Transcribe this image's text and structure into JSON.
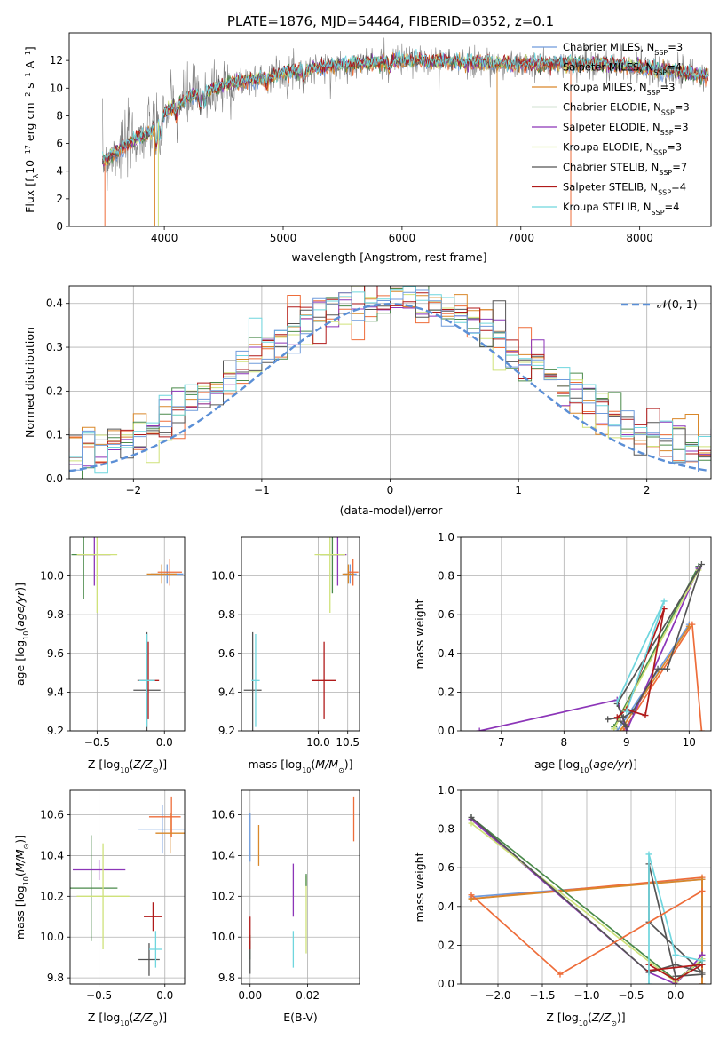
{
  "figure_title": "PLATE=1876, MJD=54464, FIBERID=0352, z=0.1",
  "colors": {
    "chabrier_miles": "#6f9bdc",
    "salpeter_miles": "#ee6d3a",
    "kroupa_miles": "#d9882a",
    "chabrier_elodie": "#4a8a4a",
    "salpeter_elodie": "#8c35b8",
    "kroupa_elodie": "#cfe27a",
    "chabrier_stelib": "#555555",
    "salpeter_stelib": "#b01a1a",
    "kroupa_stelib": "#6fd6de",
    "gaussian": "#5b8fd6",
    "data": "#808080",
    "grid": "#b0b0b0"
  },
  "chart_data": [
    {
      "id": "spectrum",
      "type": "line",
      "title": "PLATE=1876, MJD=54464, FIBERID=0352, z=0.1",
      "xlabel": "wavelength [Angstrom, rest frame]",
      "ylabel": "Flux [f",
      "xlim": [
        3200,
        8600
      ],
      "ylim": [
        0,
        14
      ],
      "xticks": [
        "4000",
        "5000",
        "6000",
        "7000",
        "8000"
      ],
      "yticks": [
        "0",
        "2",
        "4",
        "6",
        "8",
        "10",
        "12"
      ],
      "grid": false,
      "legend_position": "top-right",
      "legend": [
        {
          "label": "Chabrier MILES, N",
          "sub": "SSP",
          "tail": "=3"
        },
        {
          "label": "Salpeter MILES, N",
          "sub": "SSP",
          "tail": "=4"
        },
        {
          "label": "Kroupa MILES, N",
          "sub": "SSP",
          "tail": "=3"
        },
        {
          "label": "Chabrier ELODIE, N",
          "sub": "SSP",
          "tail": "=3"
        },
        {
          "label": "Salpeter ELODIE, N",
          "sub": "SSP",
          "tail": "=3"
        },
        {
          "label": "Kroupa ELODIE, N",
          "sub": "SSP",
          "tail": "=3"
        },
        {
          "label": "Chabrier STELIB, N",
          "sub": "SSP",
          "tail": "=7"
        },
        {
          "label": "Salpeter STELIB, N",
          "sub": "SSP",
          "tail": "=4"
        },
        {
          "label": "Kroupa STELIB, N",
          "sub": "SSP",
          "tail": "=4"
        }
      ],
      "continuum": {
        "x": [
          3500,
          3700,
          3900,
          4000,
          4200,
          4500,
          5000,
          5500,
          6000,
          6500,
          7000,
          7400,
          7900,
          8300,
          8600
        ],
        "y": [
          4.8,
          6.0,
          7.0,
          8.2,
          9.3,
          10.2,
          11.1,
          11.7,
          12.0,
          11.9,
          11.7,
          11.8,
          11.6,
          11.2,
          10.8
        ]
      },
      "spectrum_range": [
        3480,
        8580
      ]
    },
    {
      "id": "residuals",
      "type": "bar",
      "xlabel": "(data-model)/error",
      "ylabel": "Normed distribution",
      "xlim": [
        -2.5,
        2.5
      ],
      "ylim": [
        0,
        0.44
      ],
      "xticks": [
        "−2",
        "−1",
        "0",
        "1",
        "2"
      ],
      "yticks": [
        "0.0",
        "0.1",
        "0.2",
        "0.3",
        "0.4"
      ],
      "grid": true,
      "legend_position": "top-right",
      "legend_label": "𝒩(0, 1)",
      "bin_width": 0.1
    },
    {
      "id": "age_vs_z",
      "type": "scatter",
      "xlabel": "Z [log",
      "ylabel": "age  [log",
      "xlim": [
        -0.7,
        0.15
      ],
      "ylim": [
        9.2,
        10.2
      ],
      "xticks": [
        "−0.5",
        "0.0"
      ],
      "yticks": [
        "9.2",
        "9.4",
        "9.6",
        "9.8",
        "10.0"
      ],
      "grid": true,
      "points": [
        {
          "model": "chabrier_miles",
          "x": 0.02,
          "y": 10.01,
          "xerr": 0.12,
          "yerr": 0.05
        },
        {
          "model": "salpeter_miles",
          "x": 0.04,
          "y": 10.02,
          "xerr": 0.09,
          "yerr": 0.07
        },
        {
          "model": "kroupa_miles",
          "x": -0.02,
          "y": 10.01,
          "xerr": 0.11,
          "yerr": 0.05
        },
        {
          "model": "chabrier_elodie",
          "x": -0.6,
          "y": 10.11,
          "xerr": 0.09,
          "yerr": 0.23
        },
        {
          "model": "salpeter_elodie",
          "x": -0.52,
          "y": 10.11,
          "xerr": 0.12,
          "yerr": 0.16
        },
        {
          "model": "kroupa_elodie",
          "x": -0.5,
          "y": 10.11,
          "xerr": 0.15,
          "yerr": 0.3
        },
        {
          "model": "chabrier_stelib",
          "x": -0.13,
          "y": 9.41,
          "xerr": 0.1,
          "yerr": 0.3
        },
        {
          "model": "salpeter_stelib",
          "x": -0.12,
          "y": 9.46,
          "xerr": 0.08,
          "yerr": 0.2
        },
        {
          "model": "kroupa_stelib",
          "x": -0.13,
          "y": 9.46,
          "xerr": 0.06,
          "yerr": 0.24
        }
      ]
    },
    {
      "id": "age_vs_mass",
      "type": "scatter",
      "xlabel": "mass [log",
      "ylabel": "",
      "xlim": [
        8.7,
        10.7
      ],
      "ylim": [
        9.2,
        10.2
      ],
      "xticks": [
        "10.0",
        "10.5"
      ],
      "yticks": [
        "9.2",
        "9.4",
        "9.6",
        "9.8",
        "10.0"
      ],
      "grid": true,
      "points": [
        {
          "model": "chabrier_miles",
          "x": 10.54,
          "y": 10.01,
          "xerr": 0.11,
          "yerr": 0.05
        },
        {
          "model": "salpeter_miles",
          "x": 10.59,
          "y": 10.02,
          "xerr": 0.09,
          "yerr": 0.07
        },
        {
          "model": "kroupa_miles",
          "x": 10.51,
          "y": 10.01,
          "xerr": 0.1,
          "yerr": 0.05
        },
        {
          "model": "chabrier_elodie",
          "x": 10.24,
          "y": 10.11,
          "xerr": 0.2,
          "yerr": 0.2
        },
        {
          "model": "salpeter_elodie",
          "x": 10.33,
          "y": 10.11,
          "xerr": 0.15,
          "yerr": 0.16
        },
        {
          "model": "kroupa_elodie",
          "x": 10.2,
          "y": 10.11,
          "xerr": 0.26,
          "yerr": 0.3
        },
        {
          "model": "chabrier_stelib",
          "x": 8.89,
          "y": 9.41,
          "xerr": 0.15,
          "yerr": 0.3
        },
        {
          "model": "salpeter_stelib",
          "x": 10.1,
          "y": 9.46,
          "xerr": 0.2,
          "yerr": 0.2
        },
        {
          "model": "kroupa_stelib",
          "x": 8.94,
          "y": 9.46,
          "xerr": 0.07,
          "yerr": 0.24
        }
      ]
    },
    {
      "id": "weight_vs_age",
      "type": "line",
      "xlabel": "age  [log",
      "ylabel": "mass weight",
      "xlim": [
        6.35,
        10.35
      ],
      "ylim": [
        0,
        1
      ],
      "xticks": [
        "7",
        "8",
        "9",
        "10"
      ],
      "yticks": [
        "0.0",
        "0.2",
        "0.4",
        "0.6",
        "0.8",
        "1.0"
      ],
      "grid": true,
      "series": [
        {
          "model": "chabrier_miles",
          "x": [
            8.85,
            10.0
          ],
          "y": [
            0.0,
            0.55
          ]
        },
        {
          "model": "salpeter_miles",
          "x": [
            10.2,
            10.05,
            8.95
          ],
          "y": [
            0.0,
            0.55,
            0.0
          ]
        },
        {
          "model": "kroupa_miles",
          "x": [
            8.9,
            10.0
          ],
          "y": [
            0.0,
            0.54
          ]
        },
        {
          "model": "chabrier_elodie",
          "x": [
            8.8,
            10.15
          ],
          "y": [
            0.02,
            0.85
          ]
        },
        {
          "model": "salpeter_elodie",
          "x": [
            6.65,
            8.85,
            9.0,
            10.15
          ],
          "y": [
            0.0,
            0.16,
            0.0,
            0.84
          ]
        },
        {
          "model": "kroupa_elodie",
          "x": [
            8.8,
            10.15
          ],
          "y": [
            0.01,
            0.83
          ]
        },
        {
          "model": "chabrier_stelib",
          "x": [
            8.7,
            8.95,
            9.1,
            9.5,
            9.65,
            10.2,
            8.85,
            9.0,
            8.9
          ],
          "y": [
            0.06,
            0.07,
            0.1,
            0.32,
            0.32,
            0.86,
            0.14,
            0.02,
            0.05
          ]
        },
        {
          "model": "salpeter_stelib",
          "x": [
            8.85,
            9.0,
            9.3,
            9.6,
            9.0
          ],
          "y": [
            0.07,
            0.11,
            0.08,
            0.63,
            0.11
          ]
        },
        {
          "model": "kroupa_stelib",
          "x": [
            8.85,
            9.6,
            9.0
          ],
          "y": [
            0.15,
            0.67,
            0.1
          ]
        }
      ]
    },
    {
      "id": "mass_vs_z",
      "type": "scatter",
      "xlabel": "Z [log",
      "ylabel": "mass [log",
      "xlim": [
        -0.72,
        0.15
      ],
      "ylim": [
        9.77,
        10.72
      ],
      "xticks": [
        "−0.5",
        "0.0"
      ],
      "yticks": [
        "9.8",
        "10.0",
        "10.2",
        "10.4",
        "10.6"
      ],
      "grid": true,
      "points": [
        {
          "model": "chabrier_miles",
          "x": -0.02,
          "y": 10.53,
          "xerr": 0.18,
          "yerr": 0.12
        },
        {
          "model": "salpeter_miles",
          "x": 0.05,
          "y": 10.59,
          "xerr": 0.0,
          "yerr": 0.1
        },
        {
          "model": "kroupa_miles",
          "x": 0.04,
          "y": 10.51,
          "xerr": 0.11,
          "yerr": 0.1
        },
        {
          "model": "chabrier_elodie",
          "x": -0.56,
          "y": 10.24,
          "xerr": 0.2,
          "yerr": 0.26
        },
        {
          "model": "salpeter_elodie",
          "x": -0.5,
          "y": 10.33,
          "xerr": 0.2,
          "yerr": 0.05
        },
        {
          "model": "kroupa_elodie",
          "x": -0.47,
          "y": 10.2,
          "xerr": 0.2,
          "yerr": 0.26
        },
        {
          "model": "chabrier_stelib",
          "x": -0.12,
          "y": 9.89,
          "xerr": 0.08,
          "yerr": 0.08
        },
        {
          "model": "salpeter_stelib",
          "x": -0.09,
          "y": 10.1,
          "xerr": 0.07,
          "yerr": 0.07
        },
        {
          "model": "kroupa_stelib",
          "x": -0.07,
          "y": 9.94,
          "xerr": 0.05,
          "yerr": 0.09
        },
        {
          "model": "salpeter_miles",
          "x": 0.0,
          "y": 10.59,
          "xerr": 0.12,
          "yerr": 0.0
        }
      ]
    },
    {
      "id": "mass_vs_ebv",
      "type": "scatter",
      "xlabel": "E(B-V)",
      "ylabel": "",
      "xlim": [
        -0.003,
        0.038
      ],
      "ylim": [
        9.77,
        10.72
      ],
      "xticks": [
        "0.00",
        "0.02"
      ],
      "yticks": [
        "9.8",
        "10.0",
        "10.2",
        "10.4",
        "10.6"
      ],
      "grid": true,
      "points": [
        {
          "model": "chabrier_miles",
          "x": 0.0,
          "y": 10.49,
          "xerr": 0.0,
          "yerr": 0.12
        },
        {
          "model": "salpeter_miles",
          "x": 0.036,
          "y": 10.58,
          "xerr": 0.0,
          "yerr": 0.11
        },
        {
          "model": "kroupa_miles",
          "x": 0.003,
          "y": 10.45,
          "xerr": 0.0,
          "yerr": 0.1
        },
        {
          "model": "chabrier_elodie",
          "x": 0.0,
          "y": 9.95,
          "xerr": 0.0,
          "yerr": 0.06
        },
        {
          "model": "salpeter_elodie",
          "x": 0.015,
          "y": 10.23,
          "xerr": 0.0,
          "yerr": 0.13
        },
        {
          "model": "kroupa_elodie",
          "x": 0.0195,
          "y": 10.11,
          "xerr": 0.0,
          "yerr": 0.19
        },
        {
          "model": "chabrier_stelib",
          "x": 0.0,
          "y": 9.9,
          "xerr": 0.0,
          "yerr": 0.08
        },
        {
          "model": "salpeter_stelib",
          "x": 0.0,
          "y": 10.02,
          "xerr": 0.0,
          "yerr": 0.08
        },
        {
          "model": "kroupa_stelib",
          "x": 0.015,
          "y": 9.94,
          "xerr": 0.0,
          "yerr": 0.09
        },
        {
          "model": "chabrier_elodie",
          "x": 0.0195,
          "y": 10.28,
          "xerr": 0.0,
          "yerr": 0.03
        }
      ]
    },
    {
      "id": "weight_vs_z",
      "type": "line",
      "xlabel": "Z [log",
      "ylabel": "mass weight",
      "xlim": [
        -2.42,
        0.4
      ],
      "ylim": [
        0,
        1
      ],
      "xticks": [
        "−2.0",
        "−1.5",
        "−1.0",
        "−0.5",
        "0.0"
      ],
      "yticks": [
        "0.0",
        "0.2",
        "0.4",
        "0.6",
        "0.8",
        "1.0"
      ],
      "grid": true,
      "series": [
        {
          "model": "chabrier_miles",
          "x": [
            -2.3,
            0.3,
            0.3
          ],
          "y": [
            0.45,
            0.54,
            0.0
          ]
        },
        {
          "model": "salpeter_miles",
          "x": [
            -2.3,
            0.3,
            0.3,
            0.3
          ],
          "y": [
            0.44,
            0.55,
            0.12,
            0.0
          ]
        },
        {
          "model": "kroupa_miles",
          "x": [
            -2.3,
            0.3,
            0.3
          ],
          "y": [
            0.44,
            0.54,
            0.0
          ]
        },
        {
          "model": "chabrier_elodie",
          "x": [
            -2.3,
            0.0,
            0.3
          ],
          "y": [
            0.86,
            0.02,
            0.12
          ]
        },
        {
          "model": "salpeter_elodie",
          "x": [
            -2.3,
            -0.3,
            0.0,
            0.3
          ],
          "y": [
            0.85,
            0.06,
            0.0,
            0.15
          ]
        },
        {
          "model": "kroupa_elodie",
          "x": [
            -2.3,
            0.0,
            0.3
          ],
          "y": [
            0.83,
            0.01,
            0.13
          ]
        },
        {
          "model": "chabrier_stelib",
          "x": [
            -2.3,
            -0.3,
            0.0,
            0.3,
            -0.3,
            -0.3,
            0.0,
            0.3
          ],
          "y": [
            0.86,
            0.06,
            0.1,
            0.06,
            0.32,
            0.62,
            0.04,
            0.05
          ]
        },
        {
          "model": "salpeter_stelib",
          "x": [
            -0.3,
            0.0,
            0.3,
            -0.3
          ],
          "y": [
            0.1,
            0.02,
            0.1,
            0.07
          ]
        },
        {
          "model": "kroupa_stelib",
          "x": [
            -0.3,
            -0.3,
            0.0,
            0.3
          ],
          "y": [
            0.0,
            0.67,
            0.15,
            0.12
          ]
        },
        {
          "model": "salpeter_miles",
          "x": [
            -2.3,
            -1.3,
            0.3
          ],
          "y": [
            0.46,
            0.05,
            0.48
          ]
        }
      ]
    }
  ]
}
